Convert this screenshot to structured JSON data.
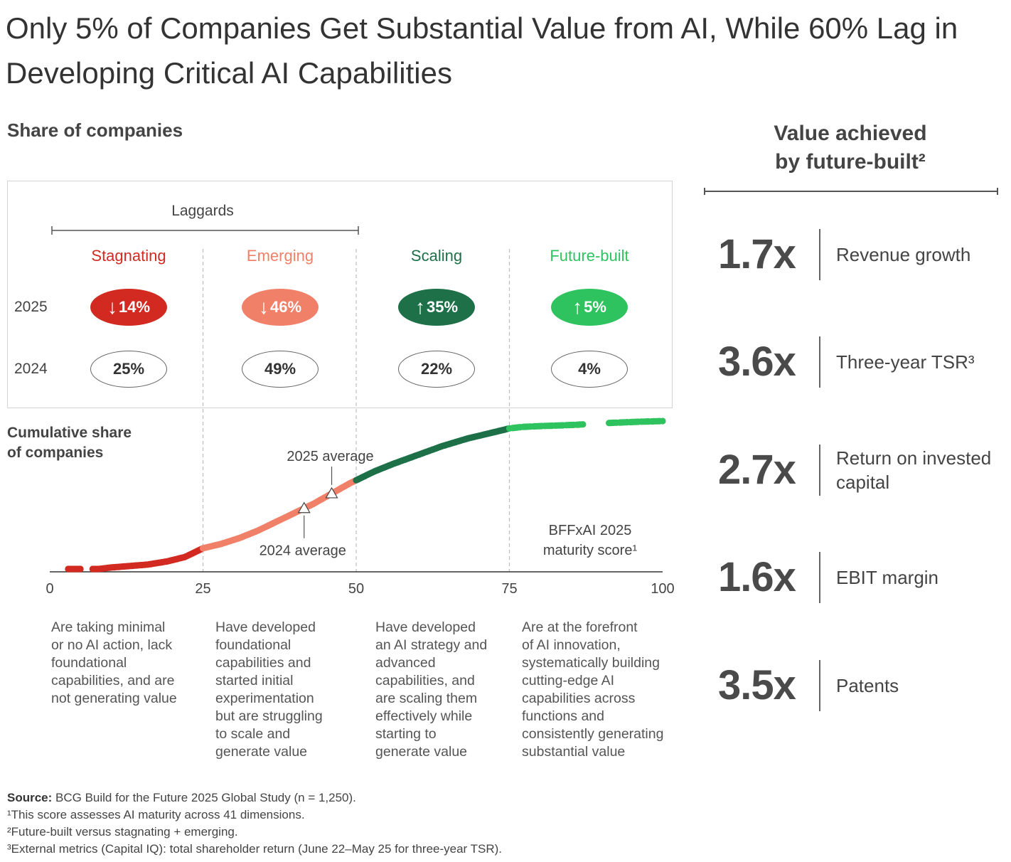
{
  "title": "Only 5% of Companies Get Substantial Value from AI, While 60% Lag in Developing Critical AI Capabilities",
  "share_label": "Share of companies",
  "laggards_label": "Laggards",
  "year_labels": [
    "2025",
    "2024"
  ],
  "segments": [
    {
      "name": "Stagnating",
      "color": "#d22a20",
      "pct_2025": "14%",
      "pct_2024": "25%",
      "direction": "down",
      "description": [
        "Are taking minimal",
        "or no AI action, lack",
        "foundational",
        "capabilities, and are",
        "not generating value"
      ]
    },
    {
      "name": "Emerging",
      "color": "#f08068",
      "pct_2025": "46%",
      "pct_2024": "49%",
      "direction": "down",
      "description": [
        "Have developed",
        "foundational",
        "capabilities and",
        "started initial",
        "experimentation",
        "but are struggling",
        "to scale and",
        "generate value"
      ]
    },
    {
      "name": "Scaling",
      "color": "#1d7048",
      "pct_2025": "35%",
      "pct_2024": "22%",
      "direction": "up",
      "description": [
        "Have developed",
        "an AI strategy and",
        "advanced",
        "capabilities, and",
        "are scaling them",
        "effectively while",
        "starting to",
        "generate value"
      ]
    },
    {
      "name": "Future-built",
      "color": "#2ec35f",
      "pct_2025": "5%",
      "pct_2024": "4%",
      "direction": "up",
      "description": [
        "Are at the forefront",
        "of AI innovation,",
        "systematically building",
        "cutting-edge AI",
        "capabilities across",
        "functions and",
        "consistently generating",
        "substantial value"
      ]
    }
  ],
  "arrows": {
    "down": "↓",
    "up": "↑"
  },
  "chart_data": {
    "type": "scatter",
    "title": "Cumulative share of companies",
    "ylabel": "Cumulative share of companies",
    "xlabel": "BFFxAI 2025 maturity score¹",
    "xlim": [
      0,
      100
    ],
    "ylim": [
      0,
      100
    ],
    "x_ticks": [
      "0",
      "25",
      "50",
      "75",
      "100"
    ],
    "thresholds": [
      25,
      50,
      75
    ],
    "curve_points": [
      {
        "x": 3,
        "y": 0
      },
      {
        "x": 6,
        "y": 0
      },
      {
        "x": 8,
        "y": 0
      },
      {
        "x": 10,
        "y": 1
      },
      {
        "x": 13,
        "y": 2
      },
      {
        "x": 16,
        "y": 3
      },
      {
        "x": 19,
        "y": 5
      },
      {
        "x": 22,
        "y": 8
      },
      {
        "x": 25,
        "y": 14
      },
      {
        "x": 28,
        "y": 17
      },
      {
        "x": 31,
        "y": 21
      },
      {
        "x": 34,
        "y": 26
      },
      {
        "x": 37,
        "y": 32
      },
      {
        "x": 40,
        "y": 38
      },
      {
        "x": 43,
        "y": 44
      },
      {
        "x": 46,
        "y": 51
      },
      {
        "x": 49,
        "y": 58
      },
      {
        "x": 50,
        "y": 60
      },
      {
        "x": 53,
        "y": 66
      },
      {
        "x": 56,
        "y": 71
      },
      {
        "x": 60,
        "y": 77
      },
      {
        "x": 64,
        "y": 83
      },
      {
        "x": 68,
        "y": 88
      },
      {
        "x": 72,
        "y": 92
      },
      {
        "x": 75,
        "y": 95
      },
      {
        "x": 77,
        "y": 96
      },
      {
        "x": 80,
        "y": 96.6
      },
      {
        "x": 83,
        "y": 97
      },
      {
        "x": 86,
        "y": 97.5
      },
      {
        "x": 90,
        "y": 98.5
      },
      {
        "x": 93,
        "y": 99
      },
      {
        "x": 96,
        "y": 99.5
      },
      {
        "x": 100,
        "y": 100
      }
    ],
    "gaps": [
      [
        5,
        7
      ],
      [
        87,
        91
      ]
    ],
    "annotations": [
      {
        "label": "2025 average",
        "x": 46,
        "y": 51,
        "position": "above"
      },
      {
        "label": "2024 average",
        "x": 41.5,
        "y": 41,
        "position": "below"
      }
    ]
  },
  "value_panel": {
    "title_line1": "Value achieved",
    "title_line2": "by future-built²",
    "metrics": [
      {
        "value": "1.7x",
        "label": "Revenue growth"
      },
      {
        "value": "3.6x",
        "label": "Three-year TSR³"
      },
      {
        "value": "2.7x",
        "label": "Return on invested capital"
      },
      {
        "value": "1.6x",
        "label": "EBIT margin"
      },
      {
        "value": "3.5x",
        "label": "Patents"
      }
    ]
  },
  "footnotes": {
    "source_label": "Source:",
    "source_text": " BCG Build for the Future 2025 Global Study (n = 1,250).",
    "notes": [
      "¹This score assesses AI maturity across 41 dimensions.",
      "²Future-built versus stagnating + emerging.",
      "³External metrics (Capital IQ): total shareholder return (June 22–May 25 for three-year TSR)."
    ]
  }
}
